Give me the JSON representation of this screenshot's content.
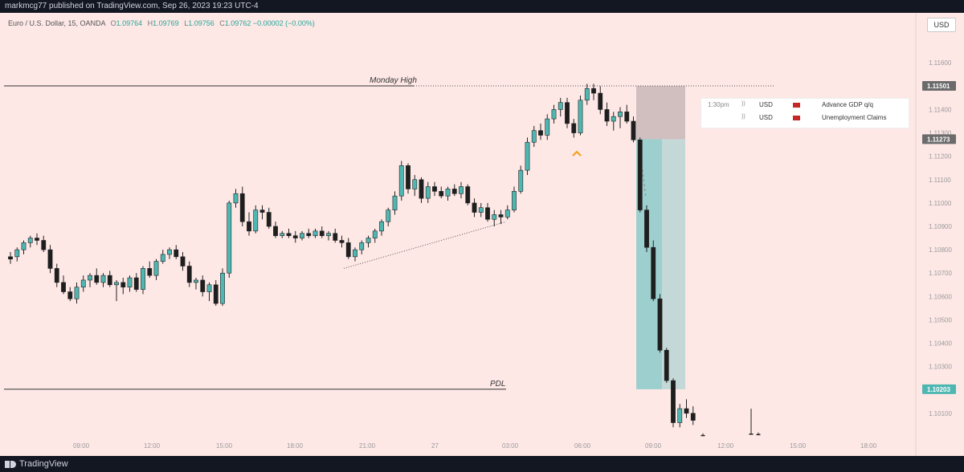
{
  "header": {
    "publish_text": "markmcg77 published on TradingView.com, Sep 26, 2023 19:23 UTC-4"
  },
  "legend": {
    "symbol": "Euro / U.S. Dollar, 15, OANDA",
    "open_label": "O",
    "open": "1.09764",
    "high_label": "H",
    "high": "1.09769",
    "low_label": "L",
    "low": "1.09756",
    "close_label": "C",
    "close": "1.09762",
    "change": "−0.00002 (−0.00%)"
  },
  "currency_button": "USD",
  "events": [
    {
      "time": "1:30pm",
      "currency": "USD",
      "name": "Advance GDP q/q"
    },
    {
      "time": "",
      "currency": "USD",
      "name": "Unemployment Claims"
    }
  ],
  "annotations": {
    "monday_high": "Monday High",
    "pdl": "PDL"
  },
  "branding": {
    "logo_text": "TradingView"
  },
  "colors": {
    "background": "#fde8e6",
    "bull": "#4fb7b2",
    "bear": "#1e1e1e",
    "stop_zone": "#c9b7b7",
    "target_zone": "#7ec7c6",
    "accent_marker": "#f39c12"
  },
  "chart_data": {
    "type": "candlestick",
    "symbol": "EURUSD",
    "timeframe": "15",
    "ylim": [
      1.1,
      1.118
    ],
    "y_ticks": [
      "1.11600",
      "1.11500",
      "1.11400",
      "1.11300",
      "1.11200",
      "1.11100",
      "1.11000",
      "1.10900",
      "1.10800",
      "1.10700",
      "1.10600",
      "1.10500",
      "1.10400",
      "1.10300",
      "1.10200",
      "1.10100"
    ],
    "x_ticks": [
      "09:00",
      "12:00",
      "15:00",
      "18:00",
      "21:00",
      "27",
      "03:00",
      "06:00",
      "09:00",
      "12:00",
      "15:00",
      "18:00"
    ],
    "price_labels": {
      "monday_high": "1.11501",
      "entry": "1.11273",
      "target": "1.10203"
    },
    "levels": {
      "monday_high": 1.11501,
      "pdl": 1.10203
    },
    "position": {
      "type": "short",
      "entry": 1.11273,
      "stop": 1.11501,
      "target": 1.10203
    },
    "candles": [
      [
        1.1077,
        1.1079,
        1.1074,
        1.1076
      ],
      [
        1.1077,
        1.1081,
        1.1075,
        1.108
      ],
      [
        1.108,
        1.1084,
        1.1078,
        1.1083
      ],
      [
        1.1083,
        1.1086,
        1.1081,
        1.1085
      ],
      [
        1.1085,
        1.1087,
        1.1082,
        1.1084
      ],
      [
        1.1084,
        1.1086,
        1.1079,
        1.108
      ],
      [
        1.108,
        1.1082,
        1.107,
        1.1072
      ],
      [
        1.1072,
        1.1074,
        1.1064,
        1.1066
      ],
      [
        1.1066,
        1.1069,
        1.1061,
        1.1062
      ],
      [
        1.1062,
        1.1064,
        1.1058,
        1.1059
      ],
      [
        1.1059,
        1.1066,
        1.1057,
        1.1064
      ],
      [
        1.1064,
        1.1069,
        1.1062,
        1.1067
      ],
      [
        1.1067,
        1.107,
        1.1064,
        1.1069
      ],
      [
        1.1069,
        1.1072,
        1.1065,
        1.1066
      ],
      [
        1.1066,
        1.107,
        1.1064,
        1.1069
      ],
      [
        1.1069,
        1.1071,
        1.1064,
        1.1065
      ],
      [
        1.1065,
        1.1067,
        1.1058,
        1.1066
      ],
      [
        1.1066,
        1.1068,
        1.1061,
        1.1064
      ],
      [
        1.1064,
        1.1069,
        1.1062,
        1.1068
      ],
      [
        1.1068,
        1.107,
        1.1062,
        1.1063
      ],
      [
        1.1063,
        1.1073,
        1.1061,
        1.1072
      ],
      [
        1.1072,
        1.1075,
        1.1068,
        1.1069
      ],
      [
        1.1069,
        1.1076,
        1.1067,
        1.1075
      ],
      [
        1.1075,
        1.108,
        1.1074,
        1.1078
      ],
      [
        1.1078,
        1.1081,
        1.1076,
        1.108
      ],
      [
        1.108,
        1.1082,
        1.1076,
        1.1077
      ],
      [
        1.1077,
        1.1079,
        1.1071,
        1.1073
      ],
      [
        1.1073,
        1.1075,
        1.1064,
        1.1066
      ],
      [
        1.1066,
        1.1068,
        1.1063,
        1.1067
      ],
      [
        1.1067,
        1.1069,
        1.106,
        1.1062
      ],
      [
        1.1062,
        1.1066,
        1.1058,
        1.1065
      ],
      [
        1.1065,
        1.1067,
        1.1056,
        1.1057
      ],
      [
        1.1057,
        1.1072,
        1.1056,
        1.107
      ],
      [
        1.107,
        1.1101,
        1.1068,
        1.11
      ],
      [
        1.11,
        1.1106,
        1.1098,
        1.1104
      ],
      [
        1.1104,
        1.1107,
        1.109,
        1.1092
      ],
      [
        1.1092,
        1.1096,
        1.1086,
        1.1088
      ],
      [
        1.1088,
        1.1099,
        1.1087,
        1.1097
      ],
      [
        1.1097,
        1.1099,
        1.1093,
        1.1096
      ],
      [
        1.1096,
        1.1098,
        1.1089,
        1.109
      ],
      [
        1.109,
        1.1092,
        1.1085,
        1.1086
      ],
      [
        1.1086,
        1.1088,
        1.1085,
        1.1087
      ],
      [
        1.1087,
        1.1089,
        1.1085,
        1.1086
      ],
      [
        1.1086,
        1.1088,
        1.1083,
        1.1085
      ],
      [
        1.1085,
        1.1088,
        1.1084,
        1.1087
      ],
      [
        1.1087,
        1.1089,
        1.1085,
        1.1086
      ],
      [
        1.1086,
        1.1089,
        1.1085,
        1.1088
      ],
      [
        1.1088,
        1.109,
        1.1085,
        1.1086
      ],
      [
        1.1086,
        1.1088,
        1.1084,
        1.1087
      ],
      [
        1.1087,
        1.1089,
        1.1083,
        1.1084
      ],
      [
        1.1084,
        1.1086,
        1.1081,
        1.1083
      ],
      [
        1.1083,
        1.1085,
        1.1076,
        1.1077
      ],
      [
        1.1077,
        1.1081,
        1.1075,
        1.108
      ],
      [
        1.108,
        1.1084,
        1.1078,
        1.1083
      ],
      [
        1.1083,
        1.1086,
        1.1081,
        1.1085
      ],
      [
        1.1085,
        1.1089,
        1.1083,
        1.1088
      ],
      [
        1.1088,
        1.1093,
        1.1086,
        1.1092
      ],
      [
        1.1092,
        1.1098,
        1.109,
        1.1097
      ],
      [
        1.1097,
        1.1105,
        1.1095,
        1.1103
      ],
      [
        1.1103,
        1.1118,
        1.1101,
        1.1116
      ],
      [
        1.1116,
        1.1117,
        1.1104,
        1.1106
      ],
      [
        1.1106,
        1.1112,
        1.1103,
        1.111
      ],
      [
        1.111,
        1.1111,
        1.11,
        1.1102
      ],
      [
        1.1102,
        1.1109,
        1.11,
        1.1107
      ],
      [
        1.1107,
        1.1109,
        1.1103,
        1.1105
      ],
      [
        1.1105,
        1.1107,
        1.1102,
        1.1103
      ],
      [
        1.1103,
        1.1107,
        1.1101,
        1.1106
      ],
      [
        1.1106,
        1.1108,
        1.1103,
        1.1104
      ],
      [
        1.1104,
        1.1109,
        1.1102,
        1.1107
      ],
      [
        1.1107,
        1.1108,
        1.1099,
        1.11
      ],
      [
        1.11,
        1.1102,
        1.1094,
        1.1096
      ],
      [
        1.1096,
        1.11,
        1.1094,
        1.1098
      ],
      [
        1.1098,
        1.11,
        1.1092,
        1.1093
      ],
      [
        1.1093,
        1.1097,
        1.109,
        1.1095
      ],
      [
        1.1095,
        1.1097,
        1.1091,
        1.1094
      ],
      [
        1.1094,
        1.1099,
        1.1093,
        1.1097
      ],
      [
        1.1097,
        1.1107,
        1.1096,
        1.1105
      ],
      [
        1.1105,
        1.1116,
        1.1104,
        1.1114
      ],
      [
        1.1114,
        1.1128,
        1.1112,
        1.1126
      ],
      [
        1.1126,
        1.1133,
        1.1124,
        1.1131
      ],
      [
        1.1131,
        1.1134,
        1.1127,
        1.1129
      ],
      [
        1.1129,
        1.1138,
        1.1127,
        1.1136
      ],
      [
        1.1136,
        1.1142,
        1.1134,
        1.114
      ],
      [
        1.114,
        1.1145,
        1.1137,
        1.1143
      ],
      [
        1.1143,
        1.1145,
        1.1132,
        1.1134
      ],
      [
        1.1134,
        1.1136,
        1.1128,
        1.113
      ],
      [
        1.113,
        1.1146,
        1.1129,
        1.1144
      ],
      [
        1.1144,
        1.1151,
        1.1142,
        1.1149
      ],
      [
        1.1149,
        1.1151,
        1.1144,
        1.1147
      ],
      [
        1.1147,
        1.115,
        1.1138,
        1.114
      ],
      [
        1.114,
        1.1143,
        1.1133,
        1.1135
      ],
      [
        1.1135,
        1.1139,
        1.1131,
        1.1137
      ],
      [
        1.1137,
        1.1141,
        1.1132,
        1.1139
      ],
      [
        1.1139,
        1.1142,
        1.1134,
        1.1135
      ],
      [
        1.1135,
        1.1137,
        1.1126,
        1.1127
      ],
      [
        1.1127,
        1.1128,
        1.1096,
        1.1097
      ],
      [
        1.1097,
        1.1099,
        1.1079,
        1.1081
      ],
      [
        1.1081,
        1.1084,
        1.1058,
        1.1059
      ],
      [
        1.1059,
        1.1061,
        1.1036,
        1.1037
      ],
      [
        1.1037,
        1.1038,
        1.1023,
        1.1024
      ],
      [
        1.1024,
        1.1025,
        1.1004,
        1.1006
      ],
      [
        1.1006,
        1.1014,
        1.1004,
        1.1012
      ],
      [
        1.1012,
        1.1016,
        1.1008,
        1.101
      ],
      [
        1.101,
        1.1013,
        1.1005,
        1.1007
      ]
    ]
  }
}
